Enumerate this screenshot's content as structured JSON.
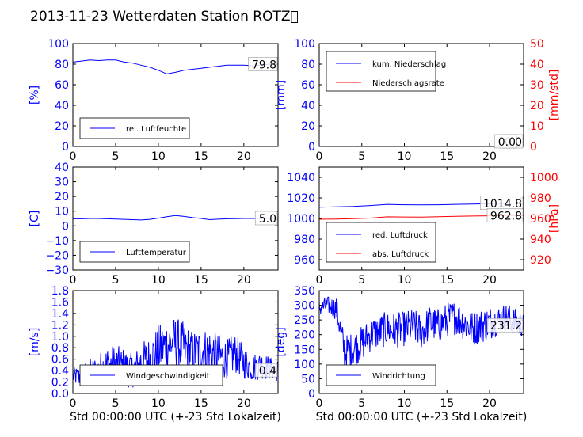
{
  "title": "2013-11-23 Wetterdaten Station ROTZ\u0000",
  "colors": {
    "blue": "#0000ff",
    "red": "#ff0000",
    "text": "#000000",
    "background": "#ffffff"
  },
  "chart_data": [
    {
      "id": "humidity",
      "type": "line",
      "x": [
        0,
        1,
        2,
        3,
        4,
        5,
        6,
        7,
        8,
        9,
        10,
        11,
        12,
        13,
        14,
        15,
        16,
        17,
        18,
        19,
        20,
        21,
        22,
        23,
        24
      ],
      "xlim": [
        0,
        24
      ],
      "x_ticks": [
        "0",
        "5",
        "10",
        "15",
        "20"
      ],
      "ylim": [
        0,
        100
      ],
      "y_ticks": [
        "0",
        "20",
        "40",
        "60",
        "80",
        "100"
      ],
      "ylabel": "[%]",
      "legend_position": "lower-left",
      "value_label": "79.8",
      "series": [
        {
          "name": "rel. Luftfeuchte",
          "color": "#0000ff",
          "values": [
            82,
            83,
            84,
            83.5,
            84,
            84,
            82,
            81,
            79,
            77,
            74,
            70.5,
            72,
            74,
            75,
            76,
            77,
            78,
            79,
            79,
            79,
            78.5,
            79,
            80,
            79.8
          ]
        }
      ]
    },
    {
      "id": "precipitation",
      "type": "line",
      "x": [
        0,
        24
      ],
      "xlim": [
        0,
        24
      ],
      "x_ticks": [
        "0",
        "5",
        "10",
        "15",
        "20"
      ],
      "ylim": [
        0,
        100
      ],
      "y_ticks": [
        "0",
        "20",
        "40",
        "60",
        "80",
        "100"
      ],
      "ylabel": "[mm]",
      "y2lim": [
        0,
        50
      ],
      "y2_ticks": [
        "0",
        "10",
        "20",
        "30",
        "40",
        "50"
      ],
      "y2label": "[mm/std]",
      "legend_position": "top-left",
      "value_labels": [
        "0.0",
        "0.0"
      ],
      "series": [
        {
          "name": "kum. Niederschlag",
          "color": "#0000ff",
          "values": [
            0,
            0
          ]
        },
        {
          "name": "Niederschlagsrate",
          "color": "#ff0000",
          "axis": "right",
          "values": [
            0,
            0
          ]
        }
      ]
    },
    {
      "id": "temperature",
      "type": "line",
      "x": [
        0,
        1,
        2,
        3,
        4,
        5,
        6,
        7,
        8,
        9,
        10,
        11,
        12,
        13,
        14,
        15,
        16,
        17,
        18,
        19,
        20,
        21,
        22,
        23,
        24
      ],
      "xlim": [
        0,
        24
      ],
      "x_ticks": [
        "0",
        "5",
        "10",
        "15",
        "20"
      ],
      "ylim": [
        -30,
        40
      ],
      "y_ticks": [
        "−30",
        "−20",
        "−10",
        "0",
        "10",
        "20",
        "30",
        "40"
      ],
      "ylabel": "[C]",
      "legend_position": "lower-left",
      "value_label": "5.0",
      "series": [
        {
          "name": "Lufttemperatur",
          "color": "#0000ff",
          "values": [
            4.8,
            4.8,
            5,
            5,
            4.8,
            4.6,
            4.4,
            4.2,
            4,
            4.4,
            5.2,
            6.2,
            7,
            6.4,
            5.6,
            5,
            4.2,
            4.5,
            4.8,
            4.9,
            5,
            5,
            5,
            5,
            5
          ]
        }
      ]
    },
    {
      "id": "pressure",
      "type": "line",
      "x": [
        0,
        2,
        4,
        6,
        8,
        10,
        12,
        14,
        16,
        18,
        20,
        22,
        24
      ],
      "xlim": [
        0,
        24
      ],
      "x_ticks": [
        "0",
        "5",
        "10",
        "15",
        "20"
      ],
      "ylim": [
        950,
        1050
      ],
      "y_ticks": [
        "960",
        "980",
        "1000",
        "1020",
        "1040"
      ],
      "y2lim": [
        910,
        1010
      ],
      "y2_ticks": [
        "920",
        "940",
        "960",
        "980",
        "1000"
      ],
      "y2label": "[hPa]",
      "legend_position": "lower-left",
      "value_labels": [
        "1014.8",
        "962.8"
      ],
      "series": [
        {
          "name": "red. Luftdruck",
          "color": "#0000ff",
          "values": [
            1011,
            1011.3,
            1011.8,
            1012.6,
            1013.8,
            1013.4,
            1013.2,
            1013.4,
            1013.8,
            1014.1,
            1014.3,
            1014.7,
            1014.8
          ]
        },
        {
          "name": "abs. Luftdruck",
          "color": "#ff0000",
          "axis": "right",
          "values": [
            959.2,
            959.4,
            959.8,
            960.4,
            961.6,
            961.5,
            961.4,
            961.8,
            962.1,
            962.4,
            962.6,
            962.8,
            962.8
          ]
        }
      ]
    },
    {
      "id": "wind_speed",
      "type": "line",
      "x_range": [
        0,
        24
      ],
      "xlim": [
        0,
        24
      ],
      "x_ticks": [
        "0",
        "5",
        "10",
        "15",
        "20"
      ],
      "xlabel": "Std 00:00:00 UTC (+-23 Std Lokalzeit)",
      "ylim": [
        0,
        1.8
      ],
      "y_ticks": [
        "0.0",
        "0.2",
        "0.4",
        "0.6",
        "0.8",
        "1.0",
        "1.2",
        "1.4",
        "1.6",
        "1.8"
      ],
      "ylabel": "[m/s]",
      "legend_position": "lower-center",
      "value_label": "0.4",
      "series": [
        {
          "name": "Windgeschwindigkeit",
          "color": "#0000ff",
          "profile_hours": [
            0,
            1,
            2,
            3,
            4,
            5,
            6,
            7,
            8,
            9,
            10,
            11,
            12,
            13,
            14,
            15,
            16,
            17,
            18,
            19,
            20,
            21,
            22,
            23,
            24
          ],
          "profile_mean": [
            0.3,
            0.3,
            0.35,
            0.4,
            0.5,
            0.5,
            0.45,
            0.4,
            0.55,
            0.6,
            0.75,
            0.85,
            0.9,
            0.8,
            0.7,
            0.75,
            0.75,
            0.65,
            0.6,
            0.7,
            0.55,
            0.45,
            0.5,
            0.45,
            0.4
          ],
          "profile_spread": [
            0.15,
            0.2,
            0.25,
            0.3,
            0.35,
            0.35,
            0.35,
            0.3,
            0.35,
            0.4,
            0.45,
            0.45,
            0.45,
            0.45,
            0.4,
            0.4,
            0.4,
            0.4,
            0.35,
            0.35,
            0.3,
            0.25,
            0.25,
            0.2,
            0.2
          ]
        }
      ]
    },
    {
      "id": "wind_direction",
      "type": "line",
      "x_range": [
        0,
        24
      ],
      "xlim": [
        0,
        24
      ],
      "x_ticks": [
        "0",
        "5",
        "10",
        "15",
        "20"
      ],
      "xlabel": "Std 00:00:00 UTC (+-23 Std Lokalzeit)",
      "ylim": [
        0,
        350
      ],
      "y_ticks": [
        "0",
        "50",
        "100",
        "150",
        "200",
        "250",
        "300",
        "350"
      ],
      "ylabel": "[deg]",
      "legend_position": "lower-left",
      "value_label": "231.2",
      "series": [
        {
          "name": "Windrichtung",
          "color": "#0000ff",
          "profile_hours": [
            0,
            1,
            2,
            3,
            4,
            5,
            6,
            7,
            8,
            9,
            10,
            11,
            12,
            13,
            14,
            15,
            16,
            17,
            18,
            19,
            20,
            21,
            22,
            23,
            24
          ],
          "profile_mean": [
            290,
            300,
            290,
            140,
            150,
            170,
            200,
            210,
            220,
            215,
            220,
            230,
            210,
            240,
            230,
            250,
            260,
            240,
            220,
            230,
            240,
            250,
            260,
            240,
            231
          ],
          "profile_spread": [
            30,
            30,
            40,
            60,
            60,
            60,
            60,
            60,
            60,
            60,
            60,
            60,
            60,
            60,
            60,
            60,
            60,
            60,
            60,
            60,
            60,
            50,
            50,
            50,
            40
          ]
        }
      ]
    }
  ]
}
